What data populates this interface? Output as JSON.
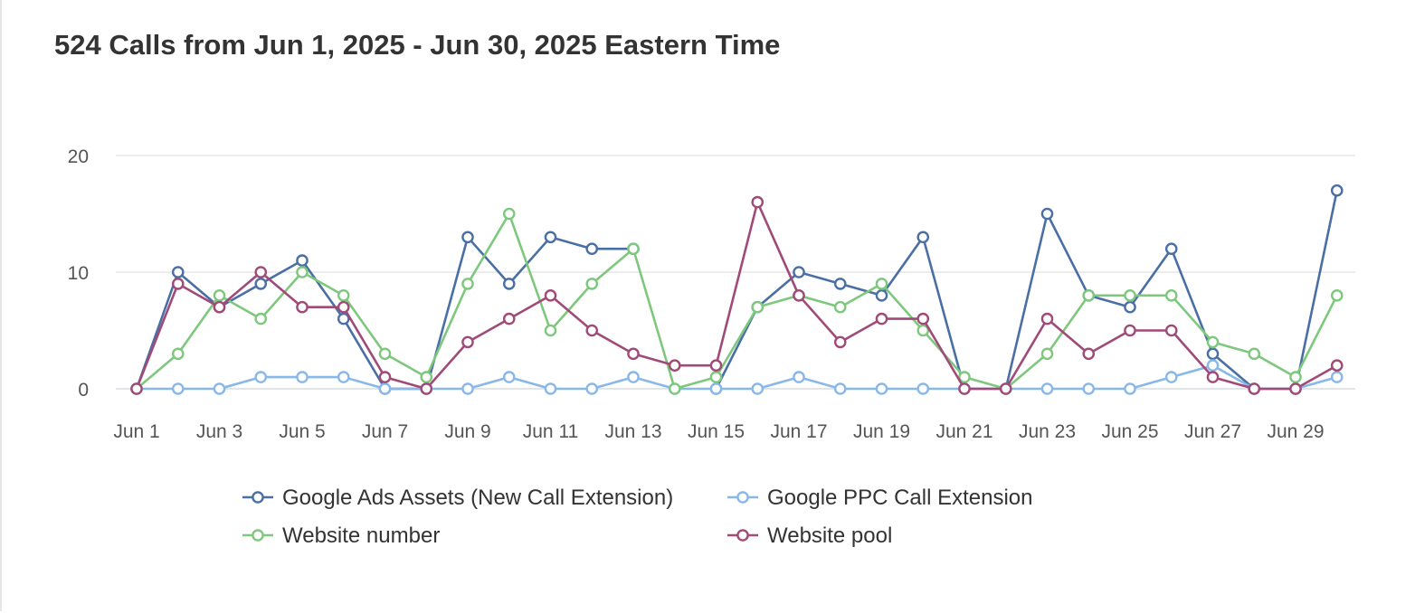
{
  "chart_data": {
    "type": "line",
    "title": "524 Calls from Jun 1, 2025 - Jun 30, 2025 Eastern Time",
    "xlabel": "",
    "ylabel": "",
    "ylim": [
      0,
      20
    ],
    "yticks": [
      0,
      10,
      20
    ],
    "categories": [
      "Jun 1",
      "Jun 2",
      "Jun 3",
      "Jun 4",
      "Jun 5",
      "Jun 6",
      "Jun 7",
      "Jun 8",
      "Jun 9",
      "Jun 10",
      "Jun 11",
      "Jun 12",
      "Jun 13",
      "Jun 14",
      "Jun 15",
      "Jun 16",
      "Jun 17",
      "Jun 18",
      "Jun 19",
      "Jun 20",
      "Jun 21",
      "Jun 22",
      "Jun 23",
      "Jun 24",
      "Jun 25",
      "Jun 26",
      "Jun 27",
      "Jun 28",
      "Jun 29",
      "Jun 30"
    ],
    "x_tick_labels": [
      "Jun 1",
      "Jun 3",
      "Jun 5",
      "Jun 7",
      "Jun 9",
      "Jun 11",
      "Jun 13",
      "Jun 15",
      "Jun 17",
      "Jun 19",
      "Jun 21",
      "Jun 23",
      "Jun 25",
      "Jun 27",
      "Jun 29"
    ],
    "grid": true,
    "legend_position": "bottom",
    "series": [
      {
        "name": "Google Ads Assets (New Call Extension)",
        "color": "#4a6fa5",
        "values": [
          0,
          10,
          7,
          9,
          11,
          6,
          0,
          0,
          13,
          9,
          13,
          12,
          12,
          null,
          0,
          7,
          10,
          9,
          8,
          13,
          0,
          0,
          15,
          8,
          7,
          12,
          3,
          0,
          0,
          17
        ]
      },
      {
        "name": "Google PPC Call Extension",
        "color": "#88b8ea",
        "values": [
          0,
          0,
          0,
          1,
          1,
          1,
          0,
          0,
          0,
          1,
          0,
          0,
          1,
          0,
          0,
          0,
          1,
          0,
          0,
          0,
          0,
          0,
          0,
          0,
          0,
          1,
          2,
          0,
          0,
          1
        ]
      },
      {
        "name": "Website number",
        "color": "#7ec87e",
        "values": [
          0,
          3,
          8,
          6,
          10,
          8,
          3,
          1,
          9,
          15,
          5,
          9,
          12,
          0,
          1,
          7,
          8,
          7,
          9,
          5,
          1,
          0,
          3,
          8,
          8,
          8,
          4,
          3,
          1,
          8
        ]
      },
      {
        "name": "Website pool",
        "color": "#a04a78",
        "values": [
          0,
          9,
          7,
          10,
          7,
          7,
          1,
          0,
          4,
          6,
          8,
          5,
          3,
          2,
          2,
          16,
          8,
          4,
          6,
          6,
          0,
          0,
          6,
          3,
          5,
          5,
          1,
          0,
          0,
          2
        ]
      }
    ]
  }
}
